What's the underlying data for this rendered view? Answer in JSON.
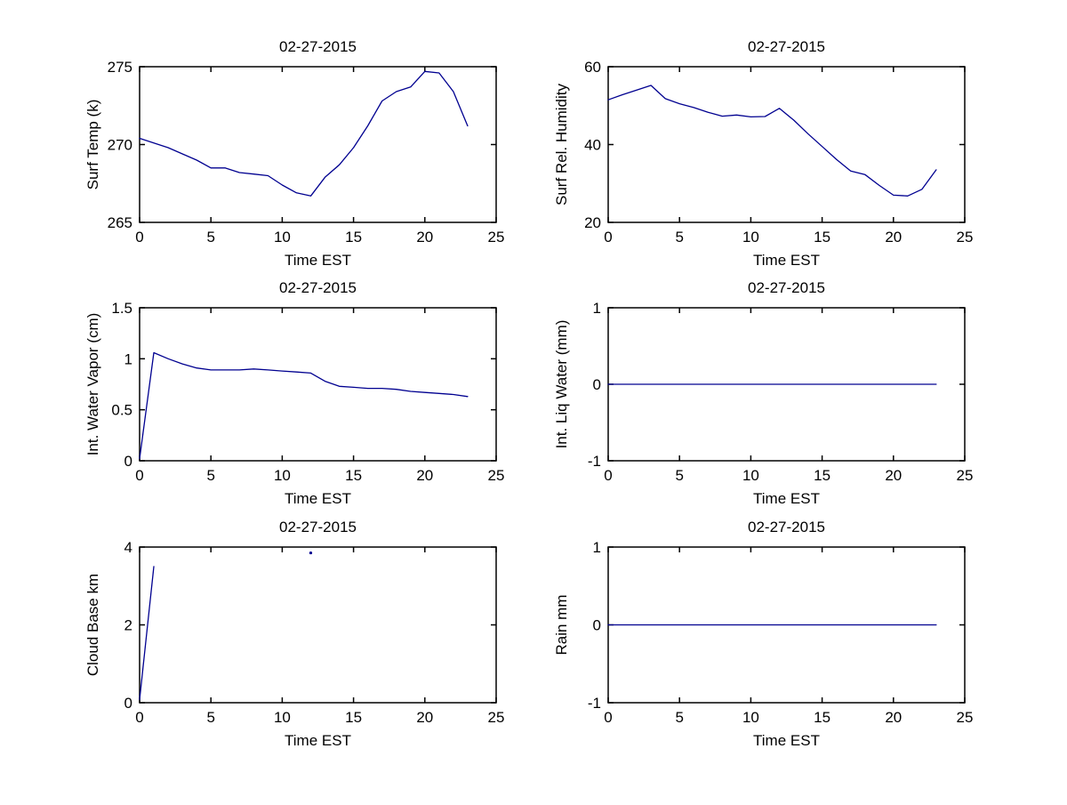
{
  "figure": {
    "background_color": "#ffffff",
    "axis_color": "#000000",
    "line_color": "#000090",
    "date": "02-27-2015"
  },
  "chart_data": [
    {
      "id": "surf-temp",
      "type": "line",
      "title": "02-27-2015",
      "xlabel": "Time EST",
      "ylabel": "Surf Temp (k)",
      "xlim": [
        0,
        25
      ],
      "ylim": [
        265,
        275
      ],
      "xticks": [
        0,
        5,
        10,
        15,
        20,
        25
      ],
      "yticks": [
        265,
        270,
        275
      ],
      "grid": false,
      "legend": null,
      "series": [
        {
          "x": [
            0,
            1,
            2,
            3,
            4,
            5,
            6,
            7,
            8,
            9,
            10,
            11,
            12,
            13,
            14,
            15,
            16,
            17,
            18,
            19,
            20,
            21,
            22,
            23
          ],
          "y": [
            270.4,
            270.1,
            269.8,
            269.4,
            269.0,
            268.5,
            268.5,
            268.2,
            268.1,
            268.0,
            267.4,
            266.9,
            266.7,
            267.9,
            268.7,
            269.8,
            271.2,
            272.8,
            273.4,
            273.7,
            274.7,
            274.6,
            273.4,
            271.2
          ]
        }
      ]
    },
    {
      "id": "surf-rel-humidity",
      "type": "line",
      "title": "02-27-2015",
      "xlabel": "Time EST",
      "ylabel": "Surf Rel. Humidity",
      "xlim": [
        0,
        25
      ],
      "ylim": [
        20,
        60
      ],
      "xticks": [
        0,
        5,
        10,
        15,
        20,
        25
      ],
      "yticks": [
        20,
        40,
        60
      ],
      "grid": false,
      "legend": null,
      "series": [
        {
          "x": [
            0,
            1,
            2,
            3,
            4,
            5,
            6,
            7,
            8,
            9,
            10,
            11,
            12,
            13,
            14,
            15,
            16,
            17,
            18,
            19,
            20,
            21,
            22,
            23
          ],
          "y": [
            51.5,
            52.8,
            54.0,
            55.2,
            51.8,
            50.5,
            49.5,
            48.3,
            47.3,
            47.6,
            47.1,
            47.2,
            49.3,
            46.3,
            42.8,
            39.5,
            36.2,
            33.2,
            32.3,
            29.5,
            27.0,
            26.8,
            28.5,
            33.5
          ]
        }
      ]
    },
    {
      "id": "int-water-vapor",
      "type": "line",
      "title": "02-27-2015",
      "xlabel": "Time EST",
      "ylabel": "Int. Water Vapor (cm)",
      "xlim": [
        0,
        25
      ],
      "ylim": [
        0,
        1.5
      ],
      "xticks": [
        0,
        5,
        10,
        15,
        20,
        25
      ],
      "yticks": [
        0,
        0.5,
        1,
        1.5
      ],
      "grid": false,
      "legend": null,
      "series": [
        {
          "x": [
            0,
            1,
            2,
            3,
            4,
            5,
            6,
            7,
            8,
            9,
            10,
            11,
            12,
            13,
            14,
            15,
            16,
            17,
            18,
            19,
            20,
            21,
            22,
            23
          ],
          "y": [
            0.02,
            1.06,
            1.0,
            0.95,
            0.91,
            0.89,
            0.89,
            0.89,
            0.9,
            0.89,
            0.88,
            0.87,
            0.86,
            0.78,
            0.73,
            0.72,
            0.71,
            0.71,
            0.7,
            0.68,
            0.67,
            0.66,
            0.65,
            0.63
          ]
        }
      ]
    },
    {
      "id": "int-liq-water",
      "type": "line",
      "title": "02-27-2015",
      "xlabel": "Time EST",
      "ylabel": "Int. Liq Water (mm)",
      "xlim": [
        0,
        25
      ],
      "ylim": [
        -1,
        1
      ],
      "xticks": [
        0,
        5,
        10,
        15,
        20,
        25
      ],
      "yticks": [
        -1,
        0,
        1
      ],
      "grid": false,
      "legend": null,
      "series": [
        {
          "x": [
            0,
            1,
            2,
            3,
            4,
            5,
            6,
            7,
            8,
            9,
            10,
            11,
            12,
            13,
            14,
            15,
            16,
            17,
            18,
            19,
            20,
            21,
            22,
            23
          ],
          "y": [
            0,
            0,
            0,
            0,
            0,
            0,
            0,
            0,
            0,
            0,
            0,
            0,
            0,
            0,
            0,
            0,
            0,
            0,
            0,
            0,
            0,
            0,
            0,
            0
          ]
        }
      ]
    },
    {
      "id": "cloud-base",
      "type": "line",
      "title": "02-27-2015",
      "xlabel": "Time EST",
      "ylabel": "Cloud Base km",
      "xlim": [
        0,
        25
      ],
      "ylim": [
        0,
        4
      ],
      "xticks": [
        0,
        5,
        10,
        15,
        20,
        25
      ],
      "yticks": [
        0,
        2,
        4
      ],
      "grid": false,
      "legend": null,
      "series": [
        {
          "x": [
            0,
            1
          ],
          "y": [
            0.08,
            3.5
          ]
        },
        {
          "x": [
            12
          ],
          "y": [
            3.85
          ]
        }
      ]
    },
    {
      "id": "rain",
      "type": "line",
      "title": "02-27-2015",
      "xlabel": "Time EST",
      "ylabel": "Rain mm",
      "xlim": [
        0,
        25
      ],
      "ylim": [
        -1,
        1
      ],
      "xticks": [
        0,
        5,
        10,
        15,
        20,
        25
      ],
      "yticks": [
        -1,
        0,
        1
      ],
      "grid": false,
      "legend": null,
      "series": [
        {
          "x": [
            0,
            1,
            2,
            3,
            4,
            5,
            6,
            7,
            8,
            9,
            10,
            11,
            12,
            13,
            14,
            15,
            16,
            17,
            18,
            19,
            20,
            21,
            22,
            23
          ],
          "y": [
            0,
            0,
            0,
            0,
            0,
            0,
            0,
            0,
            0,
            0,
            0,
            0,
            0,
            0,
            0,
            0,
            0,
            0,
            0,
            0,
            0,
            0,
            0,
            0
          ]
        }
      ]
    }
  ]
}
